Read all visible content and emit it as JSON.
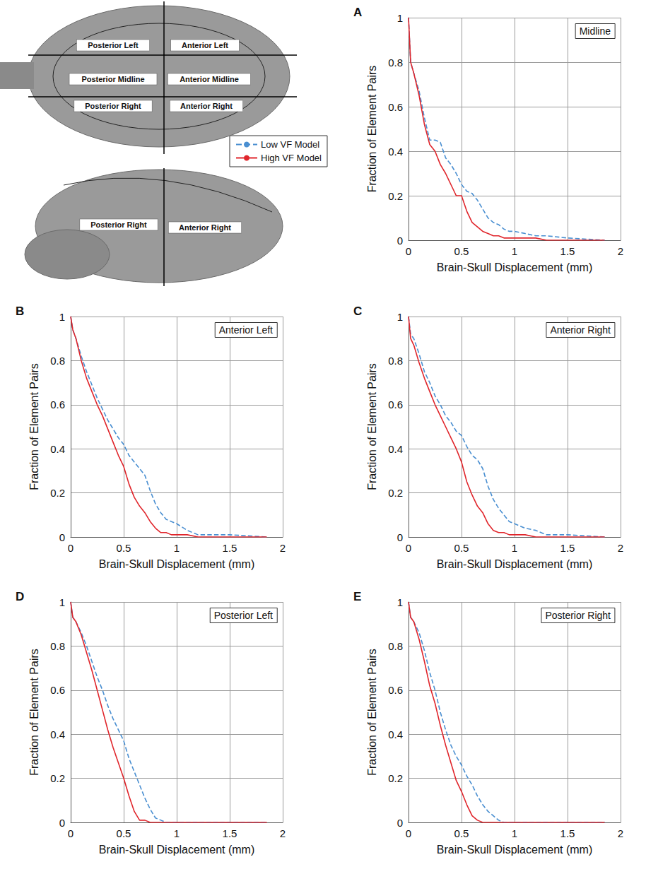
{
  "diagram": {
    "top_view_labels": [
      "Posterior Left",
      "Anterior Left",
      "Posterior Midline",
      "Anterior Midline",
      "Posterior Right",
      "Anterior Right"
    ],
    "side_view_labels": [
      "Posterior Right",
      "Anterior Right"
    ]
  },
  "chart_data": [
    {
      "type": "line",
      "panel": "A",
      "title": "Midline",
      "x_label": "Brain-Skull Displacement (mm)",
      "y_label": "Fraction of Element Pairs",
      "x": [
        0,
        0.02,
        0.05,
        0.1,
        0.15,
        0.2,
        0.25,
        0.3,
        0.35,
        0.4,
        0.45,
        0.5,
        0.55,
        0.6,
        0.65,
        0.7,
        0.75,
        0.8,
        0.85,
        0.9,
        0.95,
        1.0,
        1.1,
        1.2,
        1.3,
        1.5,
        1.85
      ],
      "series": [
        {
          "name": "Low VF Model",
          "color": "#4a8fd1",
          "line_style": "dashed",
          "values": [
            1,
            0.8,
            0.75,
            0.67,
            0.55,
            0.45,
            0.45,
            0.44,
            0.37,
            0.34,
            0.3,
            0.25,
            0.22,
            0.21,
            0.18,
            0.14,
            0.1,
            0.08,
            0.07,
            0.05,
            0.04,
            0.04,
            0.03,
            0.02,
            0.02,
            0.01,
            0
          ]
        },
        {
          "name": "High VF Model",
          "color": "#e0262c",
          "line_style": "solid",
          "values": [
            1,
            0.8,
            0.75,
            0.65,
            0.52,
            0.43,
            0.4,
            0.34,
            0.3,
            0.25,
            0.2,
            0.2,
            0.13,
            0.08,
            0.06,
            0.04,
            0.03,
            0.02,
            0.02,
            0.01,
            0.01,
            0.01,
            0.01,
            0.01,
            0,
            0,
            0
          ]
        }
      ],
      "xlim": [
        0,
        2
      ],
      "xticks": [
        0,
        0.5,
        1,
        1.5,
        2
      ],
      "ylim": [
        0,
        1
      ],
      "yticks": [
        0,
        0.2,
        0.4,
        0.6,
        0.8,
        1
      ],
      "grid": true,
      "legend": "left"
    },
    {
      "type": "line",
      "panel": "B",
      "title": "Anterior Left",
      "x_label": "Brain-Skull Displacement (mm)",
      "y_label": "Fraction of Element Pairs",
      "x": [
        0,
        0.02,
        0.05,
        0.1,
        0.15,
        0.2,
        0.25,
        0.3,
        0.35,
        0.4,
        0.45,
        0.5,
        0.55,
        0.6,
        0.65,
        0.7,
        0.75,
        0.8,
        0.85,
        0.9,
        0.95,
        1.0,
        1.1,
        1.2,
        1.3,
        1.5,
        1.85
      ],
      "series": [
        {
          "name": "Low VF Model",
          "color": "#4a8fd1",
          "line_style": "dashed",
          "values": [
            1,
            0.94,
            0.9,
            0.82,
            0.75,
            0.69,
            0.63,
            0.58,
            0.53,
            0.49,
            0.45,
            0.42,
            0.37,
            0.34,
            0.31,
            0.28,
            0.21,
            0.15,
            0.11,
            0.08,
            0.07,
            0.06,
            0.03,
            0.01,
            0.01,
            0.01,
            0
          ]
        },
        {
          "name": "High VF Model",
          "color": "#e0262c",
          "line_style": "solid",
          "values": [
            1,
            0.94,
            0.9,
            0.8,
            0.72,
            0.66,
            0.6,
            0.55,
            0.49,
            0.43,
            0.37,
            0.32,
            0.24,
            0.18,
            0.14,
            0.11,
            0.07,
            0.04,
            0.02,
            0.02,
            0.01,
            0.01,
            0.01,
            0,
            0,
            0,
            0
          ]
        }
      ],
      "xlim": [
        0,
        2
      ],
      "xticks": [
        0,
        0.5,
        1,
        1.5,
        2
      ],
      "ylim": [
        0,
        1
      ],
      "yticks": [
        0,
        0.2,
        0.4,
        0.6,
        0.8,
        1
      ],
      "grid": true
    },
    {
      "type": "line",
      "panel": "C",
      "title": "Anterior Right",
      "x_label": "Brain-Skull Displacement (mm)",
      "y_label": "Fraction of Element Pairs",
      "x": [
        0,
        0.02,
        0.05,
        0.1,
        0.15,
        0.2,
        0.25,
        0.3,
        0.35,
        0.4,
        0.45,
        0.5,
        0.55,
        0.6,
        0.65,
        0.7,
        0.75,
        0.8,
        0.85,
        0.9,
        0.95,
        1.0,
        1.1,
        1.2,
        1.3,
        1.5,
        1.85
      ],
      "series": [
        {
          "name": "Low VF Model",
          "color": "#4a8fd1",
          "line_style": "dashed",
          "values": [
            1,
            0.92,
            0.9,
            0.83,
            0.75,
            0.7,
            0.64,
            0.6,
            0.55,
            0.52,
            0.48,
            0.46,
            0.41,
            0.37,
            0.35,
            0.31,
            0.23,
            0.17,
            0.13,
            0.1,
            0.07,
            0.06,
            0.04,
            0.03,
            0.01,
            0.01,
            0
          ]
        },
        {
          "name": "High VF Model",
          "color": "#e0262c",
          "line_style": "solid",
          "values": [
            1,
            0.9,
            0.87,
            0.79,
            0.72,
            0.66,
            0.6,
            0.55,
            0.5,
            0.45,
            0.4,
            0.34,
            0.25,
            0.19,
            0.14,
            0.11,
            0.06,
            0.03,
            0.02,
            0.02,
            0.01,
            0.01,
            0.01,
            0,
            0,
            0,
            0
          ]
        }
      ],
      "xlim": [
        0,
        2
      ],
      "xticks": [
        0,
        0.5,
        1,
        1.5,
        2
      ],
      "ylim": [
        0,
        1
      ],
      "yticks": [
        0,
        0.2,
        0.4,
        0.6,
        0.8,
        1
      ],
      "grid": true
    },
    {
      "type": "line",
      "panel": "D",
      "title": "Posterior Left",
      "x_label": "Brain-Skull Displacement (mm)",
      "y_label": "Fraction of Element Pairs",
      "x": [
        0,
        0.02,
        0.05,
        0.1,
        0.15,
        0.2,
        0.25,
        0.3,
        0.35,
        0.4,
        0.45,
        0.5,
        0.55,
        0.6,
        0.65,
        0.7,
        0.75,
        0.8,
        0.85,
        0.9,
        0.95,
        1.0,
        1.1,
        1.2,
        1.3,
        1.5,
        1.85
      ],
      "series": [
        {
          "name": "Low VF Model",
          "color": "#4a8fd1",
          "line_style": "dashed",
          "values": [
            1,
            0.93,
            0.91,
            0.86,
            0.8,
            0.73,
            0.66,
            0.6,
            0.53,
            0.47,
            0.42,
            0.37,
            0.29,
            0.23,
            0.17,
            0.11,
            0.06,
            0.02,
            0.01,
            0,
            0,
            0,
            0,
            0,
            0,
            0,
            0
          ]
        },
        {
          "name": "High VF Model",
          "color": "#e0262c",
          "line_style": "solid",
          "values": [
            1,
            0.93,
            0.91,
            0.85,
            0.77,
            0.69,
            0.6,
            0.51,
            0.42,
            0.34,
            0.27,
            0.2,
            0.12,
            0.05,
            0.01,
            0.01,
            0,
            0,
            0,
            0,
            0,
            0,
            0,
            0,
            0,
            0,
            0
          ]
        }
      ],
      "xlim": [
        0,
        2
      ],
      "xticks": [
        0,
        0.5,
        1,
        1.5,
        2
      ],
      "ylim": [
        0,
        1
      ],
      "yticks": [
        0,
        0.2,
        0.4,
        0.6,
        0.8,
        1
      ],
      "grid": true
    },
    {
      "type": "line",
      "panel": "E",
      "title": "Posterior Right",
      "x_label": "Brain-Skull Displacement (mm)",
      "y_label": "Fraction of Element Pairs",
      "x": [
        0,
        0.02,
        0.05,
        0.1,
        0.15,
        0.2,
        0.25,
        0.3,
        0.35,
        0.4,
        0.45,
        0.5,
        0.55,
        0.6,
        0.65,
        0.7,
        0.75,
        0.8,
        0.85,
        0.9,
        0.95,
        1.0,
        1.1,
        1.2,
        1.3,
        1.5,
        1.85
      ],
      "series": [
        {
          "name": "Low VF Model",
          "color": "#4a8fd1",
          "line_style": "dashed",
          "values": [
            1,
            0.93,
            0.91,
            0.86,
            0.78,
            0.68,
            0.6,
            0.5,
            0.42,
            0.35,
            0.3,
            0.26,
            0.21,
            0.17,
            0.12,
            0.08,
            0.05,
            0.03,
            0.01,
            0,
            0,
            0,
            0,
            0,
            0,
            0,
            0
          ]
        },
        {
          "name": "High VF Model",
          "color": "#e0262c",
          "line_style": "solid",
          "values": [
            1,
            0.93,
            0.91,
            0.83,
            0.73,
            0.62,
            0.54,
            0.44,
            0.35,
            0.27,
            0.19,
            0.14,
            0.08,
            0.03,
            0.01,
            0,
            0,
            0,
            0,
            0,
            0,
            0,
            0,
            0,
            0,
            0,
            0
          ]
        }
      ],
      "xlim": [
        0,
        2
      ],
      "xticks": [
        0,
        0.5,
        1,
        1.5,
        2
      ],
      "ylim": [
        0,
        1
      ],
      "yticks": [
        0,
        0.2,
        0.4,
        0.6,
        0.8,
        1
      ],
      "grid": true
    }
  ]
}
